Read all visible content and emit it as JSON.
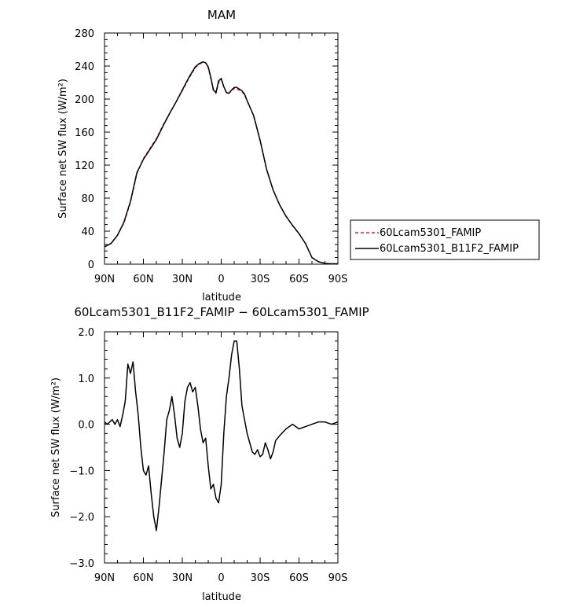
{
  "chart_data": [
    {
      "type": "line",
      "title": "MAM",
      "xlabel": "latitude",
      "ylabel": "Surface net SW flux (W/m²)",
      "ylim": [
        0,
        280
      ],
      "xlim": [
        90,
        -90
      ],
      "x_ticks": [
        90,
        60,
        30,
        0,
        -30,
        -60,
        -90
      ],
      "x_tick_labels": [
        "90N",
        "60N",
        "30N",
        "0",
        "30S",
        "60S",
        "90S"
      ],
      "y_ticks": [
        0,
        40,
        80,
        120,
        160,
        200,
        240,
        280
      ],
      "y_tick_labels": [
        "0",
        "40",
        "80",
        "120",
        "160",
        "200",
        "240",
        "280"
      ],
      "legend_position": "right",
      "series": [
        {
          "name": "60Lcam5301_FAMIP",
          "color": "#e8202a",
          "dash": "dashed",
          "x": [
            90,
            85,
            80,
            75,
            70,
            65,
            60,
            55,
            50,
            45,
            40,
            35,
            30,
            25,
            20,
            17,
            14,
            12,
            10,
            8,
            6,
            4,
            2,
            0,
            -2,
            -4,
            -6,
            -8,
            -10,
            -12,
            -14,
            -16,
            -18,
            -20,
            -25,
            -30,
            -35,
            -40,
            -45,
            -50,
            -55,
            -60,
            -65,
            -70,
            -75,
            -80,
            -85,
            -90
          ],
          "values": [
            21,
            25,
            35,
            50,
            75,
            110,
            128,
            140,
            152,
            168,
            182,
            196,
            210,
            225,
            238,
            242,
            245,
            244,
            238,
            225,
            210,
            207,
            220,
            224,
            215,
            208,
            207,
            210,
            213,
            212,
            211,
            209,
            205,
            198,
            180,
            150,
            115,
            90,
            72,
            58,
            47,
            37,
            25,
            8,
            3,
            1,
            0.5,
            0.5
          ]
        },
        {
          "name": "60Lcam5301_B11F2_FAMIP",
          "color": "#000000",
          "dash": "solid",
          "x": [
            90,
            85,
            80,
            75,
            70,
            65,
            60,
            55,
            50,
            45,
            40,
            35,
            30,
            25,
            20,
            17,
            14,
            12,
            10,
            8,
            6,
            4,
            2,
            0,
            -2,
            -4,
            -6,
            -8,
            -10,
            -12,
            -14,
            -16,
            -18,
            -20,
            -25,
            -30,
            -35,
            -40,
            -45,
            -50,
            -55,
            -60,
            -65,
            -70,
            -75,
            -80,
            -85,
            -90
          ],
          "values": [
            21,
            25,
            35,
            51,
            76,
            111,
            127,
            139,
            151,
            167,
            182,
            196,
            211,
            226,
            239,
            243,
            245,
            244,
            239,
            226,
            211,
            208,
            222,
            225,
            215,
            208,
            207,
            211,
            214,
            214,
            212,
            210,
            206,
            198,
            180,
            150,
            115,
            90,
            72,
            58,
            47,
            37,
            25,
            8,
            3,
            1,
            0.5,
            0.5
          ]
        }
      ]
    },
    {
      "type": "line",
      "title": "60Lcam5301_B11F2_FAMIP − 60Lcam5301_FAMIP",
      "xlabel": "latitude",
      "ylabel": "Surface net SW flux (W/m²)",
      "ylim": [
        -3.0,
        2.0
      ],
      "xlim": [
        90,
        -90
      ],
      "x_ticks": [
        90,
        60,
        30,
        0,
        -30,
        -60,
        -90
      ],
      "x_tick_labels": [
        "90N",
        "60N",
        "30N",
        "0",
        "30S",
        "60S",
        "90S"
      ],
      "y_ticks": [
        2.0,
        1.0,
        0.0,
        -1.0,
        -2.0,
        -3.0
      ],
      "y_tick_labels": [
        "2.0",
        "1.0",
        "0.0",
        "−1.0",
        "−2.0",
        "−3.0"
      ],
      "series": [
        {
          "color": "#000000",
          "dash": "solid",
          "x": [
            90,
            88,
            86,
            84,
            82,
            80,
            78,
            76,
            74,
            72,
            70,
            68,
            66,
            64,
            62,
            60,
            58,
            56,
            54,
            52,
            50,
            48,
            46,
            44,
            42,
            40,
            38,
            36,
            34,
            32,
            30,
            28,
            26,
            24,
            22,
            20,
            18,
            16,
            14,
            12,
            10,
            8,
            6,
            4,
            2,
            0,
            -2,
            -4,
            -6,
            -8,
            -10,
            -12,
            -14,
            -16,
            -18,
            -20,
            -22,
            -24,
            -26,
            -28,
            -30,
            -32,
            -34,
            -36,
            -38,
            -40,
            -42,
            -45,
            -50,
            -55,
            -60,
            -65,
            -70,
            -75,
            -80,
            -85,
            -90
          ],
          "values": [
            0.05,
            0.0,
            0.05,
            0.1,
            0.0,
            0.1,
            -0.05,
            0.2,
            0.5,
            1.3,
            1.1,
            1.35,
            0.7,
            0.2,
            -0.5,
            -1.0,
            -1.1,
            -0.9,
            -1.5,
            -2.0,
            -2.3,
            -1.8,
            -1.2,
            -0.6,
            0.1,
            0.3,
            0.6,
            0.2,
            -0.3,
            -0.5,
            -0.2,
            0.5,
            0.8,
            0.9,
            0.7,
            0.8,
            0.4,
            -0.1,
            -0.4,
            -0.3,
            -0.9,
            -1.4,
            -1.3,
            -1.6,
            -1.7,
            -1.3,
            -0.2,
            0.6,
            1.0,
            1.5,
            1.8,
            1.8,
            1.2,
            0.4,
            0.1,
            -0.2,
            -0.4,
            -0.6,
            -0.65,
            -0.55,
            -0.7,
            -0.65,
            -0.4,
            -0.55,
            -0.75,
            -0.6,
            -0.35,
            -0.25,
            -0.1,
            0.0,
            -0.1,
            -0.05,
            0.0,
            0.05,
            0.05,
            0.0,
            0.05
          ]
        }
      ]
    }
  ]
}
